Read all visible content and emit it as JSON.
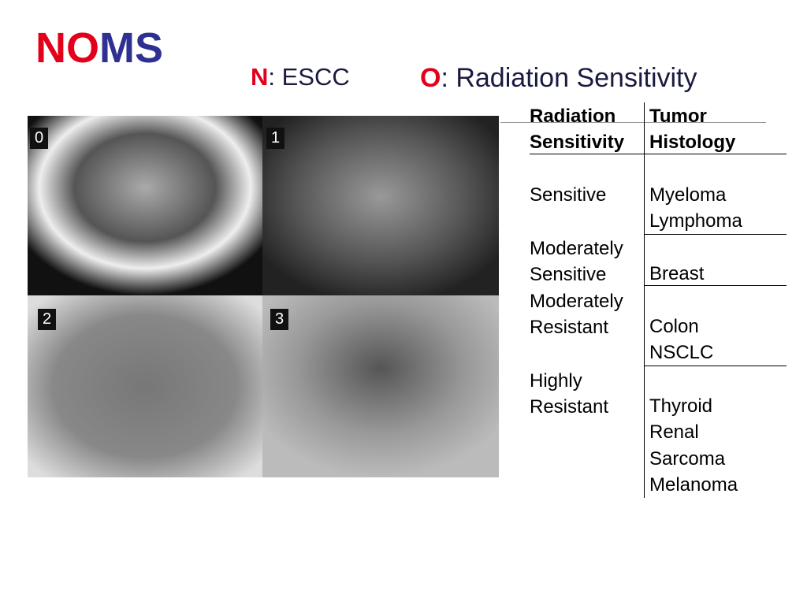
{
  "header": {
    "title": [
      "NO",
      "MS"
    ],
    "n_item": {
      "key": "N",
      "text": ": ESCC"
    },
    "o_item": {
      "key": "O",
      "text": ": Radiation Sensitivity"
    }
  },
  "images": [
    {
      "label": "0"
    },
    {
      "label": "1"
    },
    {
      "label": "2"
    },
    {
      "label": "3"
    }
  ],
  "table": {
    "header": [
      [
        "Radiation",
        "Sensitivity"
      ],
      [
        "Tumor",
        "Histology"
      ]
    ],
    "rows": [
      [
        [
          "Sensitive"
        ],
        [
          "Myeloma",
          "Lymphoma"
        ]
      ],
      [
        [
          "Moderately",
          "Sensitive"
        ],
        [
          "Breast"
        ]
      ],
      [
        [
          "Moderately",
          "Resistant"
        ],
        [
          "Colon",
          "NSCLC"
        ]
      ],
      [
        [
          "Highly",
          "Resistant"
        ],
        [
          "Thyroid",
          "Renal",
          "Sarcoma",
          "Melanoma"
        ]
      ]
    ]
  }
}
